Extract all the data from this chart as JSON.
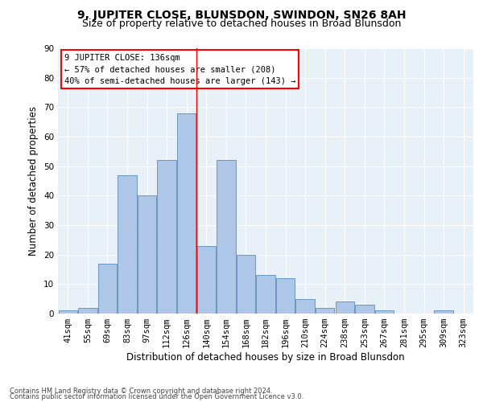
{
  "title": "9, JUPITER CLOSE, BLUNSDON, SWINDON, SN26 8AH",
  "subtitle": "Size of property relative to detached houses in Broad Blunsdon",
  "xlabel": "Distribution of detached houses by size in Broad Blunsdon",
  "ylabel": "Number of detached properties",
  "bar_labels": [
    "41sqm",
    "55sqm",
    "69sqm",
    "83sqm",
    "97sqm",
    "112sqm",
    "126sqm",
    "140sqm",
    "154sqm",
    "168sqm",
    "182sqm",
    "196sqm",
    "210sqm",
    "224sqm",
    "238sqm",
    "253sqm",
    "267sqm",
    "281sqm",
    "295sqm",
    "309sqm",
    "323sqm"
  ],
  "bar_values": [
    1,
    2,
    17,
    47,
    40,
    52,
    68,
    23,
    52,
    20,
    13,
    12,
    5,
    2,
    4,
    3,
    1,
    0,
    0,
    1,
    0
  ],
  "bar_color": "#aec6e8",
  "bar_edge_color": "#5b8db8",
  "ylim": [
    0,
    90
  ],
  "yticks": [
    0,
    10,
    20,
    30,
    40,
    50,
    60,
    70,
    80,
    90
  ],
  "vline_x": 6.5,
  "vline_color": "red",
  "annotation_text": "9 JUPITER CLOSE: 136sqm\n← 57% of detached houses are smaller (208)\n40% of semi-detached houses are larger (143) →",
  "annotation_box_color": "white",
  "annotation_box_edge_color": "red",
  "footer1": "Contains HM Land Registry data © Crown copyright and database right 2024.",
  "footer2": "Contains public sector information licensed under the Open Government Licence v3.0.",
  "background_color": "#e8f0f8",
  "title_fontsize": 10,
  "subtitle_fontsize": 9,
  "xlabel_fontsize": 8.5,
  "ylabel_fontsize": 8.5,
  "tick_fontsize": 7.5,
  "annotation_fontsize": 7.5,
  "footer_fontsize": 6
}
